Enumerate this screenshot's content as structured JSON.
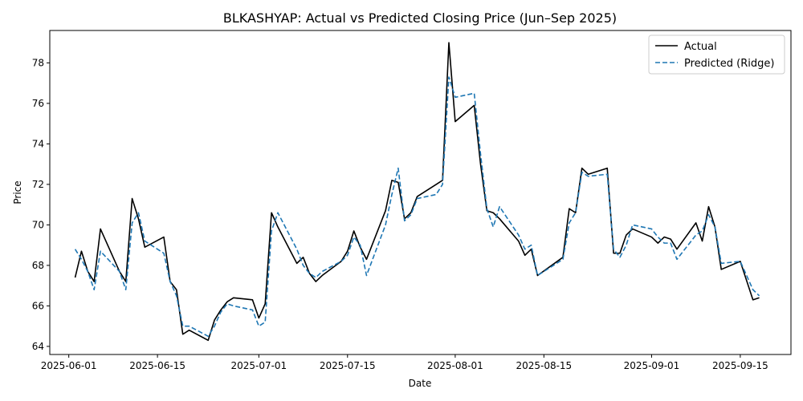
{
  "chart_data": {
    "type": "line",
    "title": "BLKASHYAP: Actual vs Predicted Closing Price (Jun–Sep 2025)",
    "xlabel": "Date",
    "ylabel": "Price",
    "xlim": [
      "2025-05-29",
      "2025-09-23"
    ],
    "ylim": [
      63.6,
      79.6
    ],
    "x_ticks": [
      "2025-06-01",
      "2025-06-15",
      "2025-07-01",
      "2025-07-15",
      "2025-08-01",
      "2025-08-15",
      "2025-09-01",
      "2025-09-15"
    ],
    "y_ticks": [
      64,
      66,
      68,
      70,
      72,
      74,
      76,
      78
    ],
    "grid": false,
    "legend": "top-right",
    "series": [
      {
        "name": "Actual",
        "color": "#000000",
        "style": "solid",
        "points": [
          [
            "2025-06-02",
            67.4
          ],
          [
            "2025-06-03",
            68.7
          ],
          [
            "2025-06-04",
            67.7
          ],
          [
            "2025-06-05",
            67.2
          ],
          [
            "2025-06-06",
            69.8
          ],
          [
            "2025-06-09",
            67.7
          ],
          [
            "2025-06-10",
            67.2
          ],
          [
            "2025-06-11",
            71.3
          ],
          [
            "2025-06-12",
            70.3
          ],
          [
            "2025-06-13",
            68.9
          ],
          [
            "2025-06-16",
            69.4
          ],
          [
            "2025-06-17",
            67.2
          ],
          [
            "2025-06-18",
            66.8
          ],
          [
            "2025-06-19",
            64.6
          ],
          [
            "2025-06-20",
            64.8
          ],
          [
            "2025-06-23",
            64.3
          ],
          [
            "2025-06-24",
            65.3
          ],
          [
            "2025-06-25",
            65.8
          ],
          [
            "2025-06-26",
            66.2
          ],
          [
            "2025-06-27",
            66.4
          ],
          [
            "2025-06-30",
            66.3
          ],
          [
            "2025-07-01",
            65.4
          ],
          [
            "2025-07-02",
            66.1
          ],
          [
            "2025-07-03",
            70.6
          ],
          [
            "2025-07-04",
            69.9
          ],
          [
            "2025-07-07",
            68.1
          ],
          [
            "2025-07-08",
            68.4
          ],
          [
            "2025-07-09",
            67.6
          ],
          [
            "2025-07-10",
            67.2
          ],
          [
            "2025-07-11",
            67.5
          ],
          [
            "2025-07-14",
            68.2
          ],
          [
            "2025-07-15",
            68.7
          ],
          [
            "2025-07-16",
            69.7
          ],
          [
            "2025-07-17",
            68.9
          ],
          [
            "2025-07-18",
            68.3
          ],
          [
            "2025-07-21",
            70.7
          ],
          [
            "2025-07-22",
            72.2
          ],
          [
            "2025-07-23",
            72.1
          ],
          [
            "2025-07-24",
            70.3
          ],
          [
            "2025-07-25",
            70.6
          ],
          [
            "2025-07-26",
            71.4
          ],
          [
            "2025-07-29",
            72.0
          ],
          [
            "2025-07-30",
            72.2
          ],
          [
            "2025-07-31",
            79.0
          ],
          [
            "2025-08-01",
            75.1
          ],
          [
            "2025-08-04",
            75.9
          ],
          [
            "2025-08-05",
            73.0
          ],
          [
            "2025-08-06",
            70.7
          ],
          [
            "2025-08-07",
            70.6
          ],
          [
            "2025-08-08",
            70.3
          ],
          [
            "2025-08-11",
            69.2
          ],
          [
            "2025-08-12",
            68.5
          ],
          [
            "2025-08-13",
            68.8
          ],
          [
            "2025-08-14",
            67.5
          ],
          [
            "2025-08-18",
            68.4
          ],
          [
            "2025-08-19",
            70.8
          ],
          [
            "2025-08-20",
            70.6
          ],
          [
            "2025-08-21",
            72.8
          ],
          [
            "2025-08-22",
            72.5
          ],
          [
            "2025-08-25",
            72.8
          ],
          [
            "2025-08-26",
            68.6
          ],
          [
            "2025-08-27",
            68.6
          ],
          [
            "2025-08-28",
            69.5
          ],
          [
            "2025-08-29",
            69.8
          ],
          [
            "2025-09-01",
            69.4
          ],
          [
            "2025-09-02",
            69.1
          ],
          [
            "2025-09-03",
            69.4
          ],
          [
            "2025-09-04",
            69.3
          ],
          [
            "2025-09-05",
            68.8
          ],
          [
            "2025-09-08",
            70.1
          ],
          [
            "2025-09-09",
            69.2
          ],
          [
            "2025-09-10",
            70.9
          ],
          [
            "2025-09-11",
            69.9
          ],
          [
            "2025-09-12",
            67.8
          ],
          [
            "2025-09-15",
            68.2
          ],
          [
            "2025-09-17",
            66.3
          ],
          [
            "2025-09-18",
            66.4
          ]
        ]
      },
      {
        "name": "Predicted (Ridge)",
        "color": "#1f77b4",
        "style": "dashed",
        "points": [
          [
            "2025-06-02",
            68.8
          ],
          [
            "2025-06-03",
            68.3
          ],
          [
            "2025-06-04",
            67.7
          ],
          [
            "2025-06-05",
            66.8
          ],
          [
            "2025-06-06",
            68.7
          ],
          [
            "2025-06-09",
            67.7
          ],
          [
            "2025-06-10",
            66.8
          ],
          [
            "2025-06-11",
            70.1
          ],
          [
            "2025-06-12",
            70.6
          ],
          [
            "2025-06-13",
            69.2
          ],
          [
            "2025-06-16",
            68.6
          ],
          [
            "2025-06-17",
            67.2
          ],
          [
            "2025-06-18",
            66.5
          ],
          [
            "2025-06-19",
            65.0
          ],
          [
            "2025-06-20",
            65.0
          ],
          [
            "2025-06-23",
            64.5
          ],
          [
            "2025-06-24",
            65.0
          ],
          [
            "2025-06-25",
            65.7
          ],
          [
            "2025-06-26",
            66.1
          ],
          [
            "2025-06-27",
            66.0
          ],
          [
            "2025-06-30",
            65.8
          ],
          [
            "2025-07-01",
            65.0
          ],
          [
            "2025-07-02",
            65.2
          ],
          [
            "2025-07-03",
            69.7
          ],
          [
            "2025-07-04",
            70.6
          ],
          [
            "2025-07-07",
            68.8
          ],
          [
            "2025-07-08",
            68.0
          ],
          [
            "2025-07-09",
            67.6
          ],
          [
            "2025-07-10",
            67.4
          ],
          [
            "2025-07-11",
            67.7
          ],
          [
            "2025-07-14",
            68.2
          ],
          [
            "2025-07-15",
            68.5
          ],
          [
            "2025-07-16",
            69.4
          ],
          [
            "2025-07-17",
            69.0
          ],
          [
            "2025-07-18",
            67.5
          ],
          [
            "2025-07-21",
            70.0
          ],
          [
            "2025-07-22",
            71.5
          ],
          [
            "2025-07-23",
            72.8
          ],
          [
            "2025-07-24",
            70.2
          ],
          [
            "2025-07-25",
            70.5
          ],
          [
            "2025-07-26",
            71.3
          ],
          [
            "2025-07-29",
            71.5
          ],
          [
            "2025-07-30",
            72.0
          ],
          [
            "2025-07-31",
            77.3
          ],
          [
            "2025-08-01",
            76.3
          ],
          [
            "2025-08-04",
            76.5
          ],
          [
            "2025-08-05",
            73.5
          ],
          [
            "2025-08-06",
            70.8
          ],
          [
            "2025-08-07",
            69.9
          ],
          [
            "2025-08-08",
            70.9
          ],
          [
            "2025-08-11",
            69.5
          ],
          [
            "2025-08-12",
            68.8
          ],
          [
            "2025-08-13",
            69.0
          ],
          [
            "2025-08-14",
            67.5
          ],
          [
            "2025-08-18",
            68.3
          ],
          [
            "2025-08-19",
            70.1
          ],
          [
            "2025-08-20",
            70.6
          ],
          [
            "2025-08-21",
            72.6
          ],
          [
            "2025-08-22",
            72.4
          ],
          [
            "2025-08-25",
            72.5
          ],
          [
            "2025-08-26",
            68.8
          ],
          [
            "2025-08-27",
            68.4
          ],
          [
            "2025-08-28",
            69.0
          ],
          [
            "2025-08-29",
            70.0
          ],
          [
            "2025-09-01",
            69.8
          ],
          [
            "2025-09-02",
            69.4
          ],
          [
            "2025-09-03",
            69.1
          ],
          [
            "2025-09-04",
            69.1
          ],
          [
            "2025-09-05",
            68.3
          ],
          [
            "2025-09-08",
            69.5
          ],
          [
            "2025-09-09",
            69.7
          ],
          [
            "2025-09-10",
            70.5
          ],
          [
            "2025-09-11",
            69.9
          ],
          [
            "2025-09-12",
            68.1
          ],
          [
            "2025-09-15",
            68.2
          ],
          [
            "2025-09-17",
            66.8
          ],
          [
            "2025-09-18",
            66.5
          ]
        ]
      }
    ]
  }
}
